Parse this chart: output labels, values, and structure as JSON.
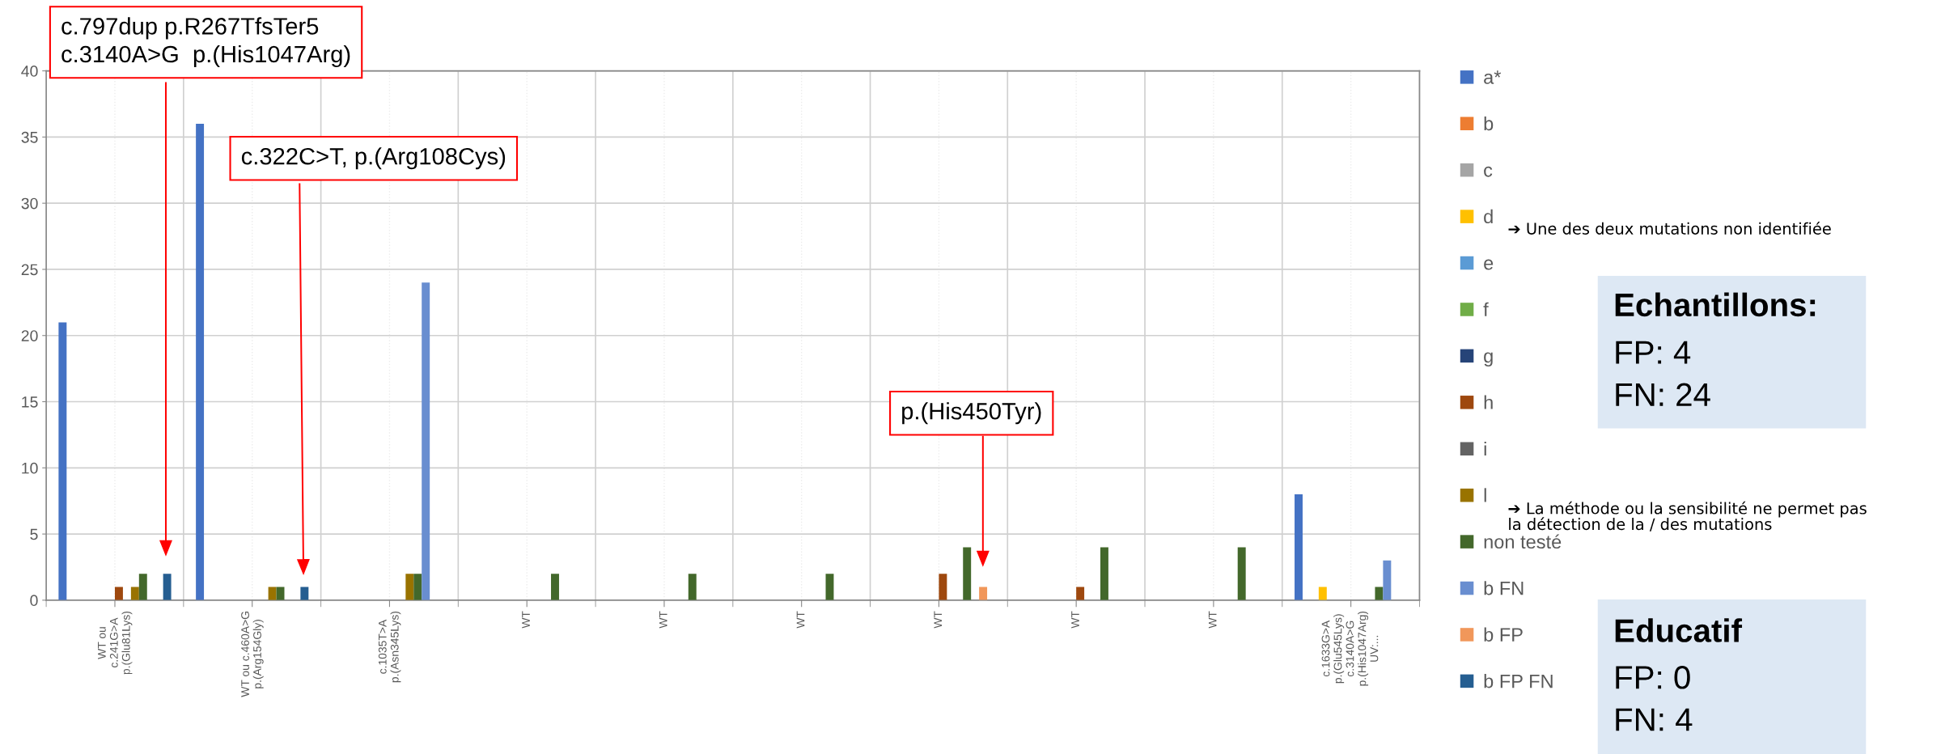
{
  "chart_data": {
    "type": "bar",
    "categories": [
      "WT ou\nc.241G>A\np.(Glu81Lys)",
      "WT ou c.460A>G\np.(Arg154Gly)",
      "c.1035T>A\np.(Asn345Lys)",
      "WT",
      "WT",
      "WT",
      "WT",
      "WT",
      "WT",
      "c.1633G>A\np.(Glu545Lys)\nc.3140A>G\np.(His1047Arg)\nUV:..."
    ],
    "series": [
      {
        "name": "a*",
        "color": "#4472c4",
        "values": [
          21,
          36,
          0,
          0,
          0,
          0,
          0,
          0,
          0,
          8
        ]
      },
      {
        "name": "b",
        "color": "#ed7d31",
        "values": [
          0,
          0,
          0,
          0,
          0,
          0,
          0,
          0,
          0,
          0
        ]
      },
      {
        "name": "c",
        "color": "#a5a5a5",
        "values": [
          0,
          0,
          0,
          0,
          0,
          0,
          0,
          0,
          0,
          0
        ]
      },
      {
        "name": "d",
        "color": "#ffc000",
        "values": [
          0,
          0,
          0,
          0,
          0,
          0,
          0,
          0,
          0,
          1
        ]
      },
      {
        "name": "e",
        "color": "#5b9bd5",
        "values": [
          0,
          0,
          0,
          0,
          0,
          0,
          0,
          0,
          0,
          0
        ]
      },
      {
        "name": "f",
        "color": "#70ad47",
        "values": [
          0,
          0,
          0,
          0,
          0,
          0,
          0,
          0,
          0,
          0
        ]
      },
      {
        "name": "g",
        "color": "#264478",
        "values": [
          0,
          0,
          0,
          0,
          0,
          0,
          0,
          0,
          0,
          0
        ]
      },
      {
        "name": "h",
        "color": "#9e480e",
        "values": [
          1,
          0,
          0,
          0,
          0,
          0,
          2,
          1,
          0,
          0
        ]
      },
      {
        "name": "i",
        "color": "#636363",
        "values": [
          0,
          0,
          0,
          0,
          0,
          0,
          0,
          0,
          0,
          0
        ]
      },
      {
        "name": "l",
        "color": "#997300",
        "values": [
          1,
          1,
          2,
          0,
          0,
          0,
          0,
          0,
          0,
          0
        ]
      },
      {
        "name": "non testé",
        "color": "#43682b",
        "values": [
          2,
          1,
          2,
          2,
          2,
          2,
          4,
          4,
          4,
          1
        ]
      },
      {
        "name": "b FN",
        "color": "#698ed0",
        "values": [
          0,
          0,
          24,
          0,
          0,
          0,
          0,
          0,
          0,
          3
        ]
      },
      {
        "name": "b FP",
        "color": "#f1975a",
        "values": [
          0,
          0,
          0,
          0,
          0,
          0,
          1,
          0,
          0,
          0
        ]
      },
      {
        "name": "b FP FN",
        "color": "#255e91",
        "values": [
          2,
          1,
          0,
          0,
          0,
          0,
          0,
          0,
          0,
          0
        ]
      }
    ],
    "ylim": [
      0,
      40
    ],
    "yticks": [
      0,
      5,
      10,
      15,
      20,
      25,
      30,
      35,
      40
    ],
    "grid": true,
    "legend": "right",
    "annotations": [
      "c.797dup p.R267TfsTer5\nc.3140A>G  p.(His1047Arg)",
      "c.322C>T, p.(Arg108Cys)",
      "p.(His450Tyr)",
      "➔ Une des deux mutations non identifiée",
      "➔ La méthode ou la sensibilité ne permet pas\nla détection de la / des mutations",
      "Echantillons:",
      "FP: 4\nFN: 24",
      "Educatif",
      "FP: 0\nFN: 4"
    ]
  }
}
